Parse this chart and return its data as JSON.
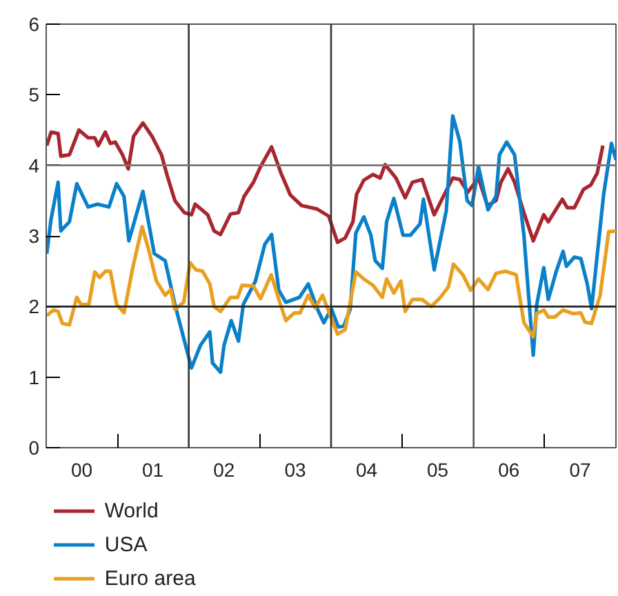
{
  "chart_data": {
    "type": "line",
    "xlim": [
      "2000-01-01",
      "2008-01-01"
    ],
    "ylim": [
      0,
      6
    ],
    "yticks": [
      0,
      1,
      2,
      3,
      4,
      5,
      6
    ],
    "xticks": [
      {
        "value": "2000-07-01",
        "label": "00"
      },
      {
        "value": "2001-07-01",
        "label": "01"
      },
      {
        "value": "2002-07-01",
        "label": "02"
      },
      {
        "value": "2003-07-01",
        "label": "03"
      },
      {
        "value": "2004-07-01",
        "label": "04"
      },
      {
        "value": "2005-07-01",
        "label": "05"
      },
      {
        "value": "2006-07-01",
        "label": "06"
      },
      {
        "value": "2007-07-01",
        "label": "07"
      },
      {
        "value": "2001-01-01",
        "label": null
      },
      {
        "value": "2003-01-01",
        "label": null
      },
      {
        "value": "2005-01-01",
        "label": null
      },
      {
        "value": "2007-01-01",
        "label": null
      }
    ],
    "ref_lines": [
      {
        "axis": "x",
        "value": "2002-01-01",
        "color": "#333333"
      },
      {
        "axis": "x",
        "value": "2004-01-01",
        "color": "#333333"
      },
      {
        "axis": "x",
        "value": "2006-01-01",
        "color": "#555555"
      },
      {
        "axis": "y",
        "value": 2,
        "color": "#222222"
      },
      {
        "axis": "y",
        "value": 4,
        "color": "#777777"
      }
    ],
    "legend": "bottom",
    "series": [
      {
        "name": "World",
        "color": "#a8262f",
        "x": [
          "2000-01-04",
          "2000-01-26",
          "2000-03-02",
          "2000-03-16",
          "2000-04-29",
          "2000-06-17",
          "2000-08-03",
          "2000-09-06",
          "2000-09-24",
          "2000-10-30",
          "2000-11-25",
          "2000-12-20",
          "2001-01-26",
          "2001-02-25",
          "2001-03-24",
          "2001-05-11",
          "2001-06-27",
          "2001-08-14",
          "2001-09-13",
          "2001-10-22",
          "2001-12-09",
          "2002-01-15",
          "2002-02-03",
          "2002-04-08",
          "2002-05-11",
          "2002-06-13",
          "2002-08-03",
          "2002-09-13",
          "2002-10-12",
          "2002-11-29",
          "2003-01-04",
          "2003-03-02",
          "2003-04-19",
          "2003-06-06",
          "2003-08-03",
          "2003-09-20",
          "2003-10-22",
          "2003-12-20",
          "2004-02-03",
          "2004-03-13",
          "2004-04-22",
          "2004-05-11",
          "2004-06-17",
          "2004-08-03",
          "2004-09-09",
          "2004-10-04",
          "2004-11-29",
          "2005-01-15",
          "2005-02-21",
          "2005-04-12",
          "2005-06-13",
          "2005-07-30",
          "2005-09-16",
          "2005-10-22",
          "2005-12-02",
          "2006-01-26",
          "2006-03-13",
          "2006-04-26",
          "2006-05-21",
          "2006-06-27",
          "2006-07-30",
          "2006-09-16",
          "2006-11-03",
          "2006-12-27",
          "2007-01-19",
          "2007-04-01",
          "2007-04-26",
          "2007-06-02",
          "2007-07-19",
          "2007-08-25",
          "2007-09-27",
          "2007-10-26"
        ],
        "values": [
          4.28,
          4.47,
          4.45,
          4.13,
          4.15,
          4.5,
          4.39,
          4.39,
          4.28,
          4.47,
          4.31,
          4.33,
          4.15,
          3.95,
          4.41,
          4.6,
          4.41,
          4.15,
          3.85,
          3.5,
          3.33,
          3.3,
          3.45,
          3.3,
          3.07,
          3.02,
          3.31,
          3.33,
          3.56,
          3.76,
          3.98,
          4.26,
          3.89,
          3.58,
          3.43,
          3.4,
          3.38,
          3.28,
          2.91,
          2.97,
          3.2,
          3.59,
          3.79,
          3.87,
          3.82,
          4.01,
          3.82,
          3.54,
          3.76,
          3.8,
          3.3,
          3.56,
          3.82,
          3.8,
          3.62,
          3.82,
          3.43,
          3.5,
          3.76,
          3.95,
          3.76,
          3.33,
          2.93,
          3.3,
          3.2,
          3.52,
          3.4,
          3.4,
          3.66,
          3.72,
          3.89,
          4.28
        ]
      },
      {
        "name": "USA",
        "color": "#0a80c8",
        "x": [
          "2000-01-04",
          "2000-01-26",
          "2000-03-02",
          "2000-03-16",
          "2000-04-29",
          "2000-06-06",
          "2000-08-03",
          "2000-09-20",
          "2000-11-18",
          "2000-12-27",
          "2001-02-03",
          "2001-02-28",
          "2001-05-11",
          "2001-07-08",
          "2001-09-02",
          "2001-10-22",
          "2002-01-15",
          "2002-03-02",
          "2002-04-19",
          "2002-05-03",
          "2002-06-13",
          "2002-07-01",
          "2002-08-07",
          "2002-09-13",
          "2002-10-08",
          "2002-12-09",
          "2003-01-26",
          "2003-03-02",
          "2003-04-08",
          "2003-05-14",
          "2003-07-23",
          "2003-09-06",
          "2003-10-22",
          "2003-11-25",
          "2003-12-20",
          "2004-01-04",
          "2004-02-07",
          "2004-03-06",
          "2004-04-08",
          "2004-05-07",
          "2004-06-17",
          "2004-07-23",
          "2004-08-14",
          "2004-09-20",
          "2004-10-12",
          "2004-11-18",
          "2005-01-04",
          "2005-02-11",
          "2005-04-01",
          "2005-04-19",
          "2005-06-13",
          "2005-08-14",
          "2005-09-16",
          "2005-10-22",
          "2005-11-29",
          "2005-12-24",
          "2006-01-26",
          "2006-03-16",
          "2006-04-26",
          "2006-05-14",
          "2006-06-20",
          "2006-07-30",
          "2006-09-16",
          "2006-11-03",
          "2006-11-21",
          "2006-12-27",
          "2007-01-19",
          "2007-02-28",
          "2007-04-05",
          "2007-04-22",
          "2007-06-02",
          "2007-07-05",
          "2007-08-07",
          "2007-08-29",
          "2007-10-30",
          "2007-12-09",
          "2008-01-01"
        ],
        "values": [
          2.75,
          3.24,
          3.76,
          3.07,
          3.2,
          3.74,
          3.41,
          3.45,
          3.41,
          3.74,
          3.56,
          2.93,
          3.63,
          2.75,
          2.65,
          2.03,
          1.13,
          1.45,
          1.64,
          1.2,
          1.07,
          1.45,
          1.8,
          1.51,
          2.03,
          2.36,
          2.88,
          3.02,
          2.23,
          2.06,
          2.13,
          2.32,
          1.97,
          1.77,
          1.9,
          1.96,
          1.71,
          1.72,
          1.96,
          3.04,
          3.27,
          3.01,
          2.65,
          2.54,
          3.2,
          3.53,
          3.01,
          3.01,
          3.17,
          3.52,
          2.52,
          3.36,
          4.7,
          4.34,
          3.5,
          3.43,
          3.98,
          3.37,
          3.56,
          4.15,
          4.33,
          4.15,
          3.01,
          1.31,
          2.03,
          2.55,
          2.1,
          2.49,
          2.78,
          2.57,
          2.7,
          2.68,
          2.32,
          1.97,
          3.59,
          4.31,
          4.08
        ]
      },
      {
        "name": "Euro area",
        "color": "#e8a020",
        "x": [
          "2000-01-04",
          "2000-02-07",
          "2000-03-02",
          "2000-03-24",
          "2000-04-29",
          "2000-06-06",
          "2000-06-27",
          "2000-08-07",
          "2000-09-06",
          "2000-10-01",
          "2000-10-30",
          "2000-11-25",
          "2000-12-27",
          "2001-02-03",
          "2001-03-20",
          "2001-05-07",
          "2001-06-09",
          "2001-07-19",
          "2001-09-02",
          "2001-10-01",
          "2001-10-22",
          "2001-12-06",
          "2002-01-08",
          "2002-02-07",
          "2002-03-13",
          "2002-04-19",
          "2002-05-11",
          "2002-06-13",
          "2002-08-03",
          "2002-09-09",
          "2002-10-01",
          "2002-11-29",
          "2003-01-04",
          "2003-02-28",
          "2003-04-08",
          "2003-05-14",
          "2003-06-27",
          "2003-07-26",
          "2003-09-06",
          "2003-10-12",
          "2003-11-18",
          "2003-12-20",
          "2004-02-03",
          "2004-03-13",
          "2004-05-07",
          "2004-06-17",
          "2004-08-03",
          "2004-09-20",
          "2004-10-12",
          "2004-11-18",
          "2004-12-24",
          "2005-01-15",
          "2005-02-21",
          "2005-04-12",
          "2005-05-29",
          "2005-07-15",
          "2005-08-25",
          "2005-09-20",
          "2005-11-07",
          "2005-12-17",
          "2006-01-26",
          "2006-03-16",
          "2006-04-26",
          "2006-06-13",
          "2006-08-07",
          "2006-09-16",
          "2006-11-03",
          "2006-11-21",
          "2006-12-27",
          "2007-01-19",
          "2007-02-21",
          "2007-04-05",
          "2007-05-25",
          "2007-07-05",
          "2007-07-26",
          "2007-08-29",
          "2007-10-12",
          "2007-11-25",
          "2008-01-01"
        ],
        "values": [
          1.87,
          1.95,
          1.93,
          1.76,
          1.74,
          2.13,
          2.03,
          2.03,
          2.49,
          2.41,
          2.5,
          2.5,
          2.03,
          1.91,
          2.55,
          3.13,
          2.81,
          2.36,
          2.16,
          2.24,
          1.96,
          2.06,
          2.62,
          2.52,
          2.5,
          2.32,
          2.0,
          1.93,
          2.13,
          2.13,
          2.3,
          2.29,
          2.11,
          2.45,
          2.1,
          1.8,
          1.91,
          1.91,
          2.16,
          1.98,
          2.16,
          1.93,
          1.61,
          1.67,
          2.49,
          2.39,
          2.3,
          2.13,
          2.39,
          2.19,
          2.36,
          1.93,
          2.1,
          2.1,
          2.0,
          2.13,
          2.28,
          2.6,
          2.45,
          2.23,
          2.39,
          2.24,
          2.47,
          2.5,
          2.45,
          1.77,
          1.57,
          1.9,
          1.95,
          1.85,
          1.85,
          1.95,
          1.9,
          1.91,
          1.78,
          1.76,
          2.16,
          3.06,
          3.07
        ]
      }
    ]
  }
}
